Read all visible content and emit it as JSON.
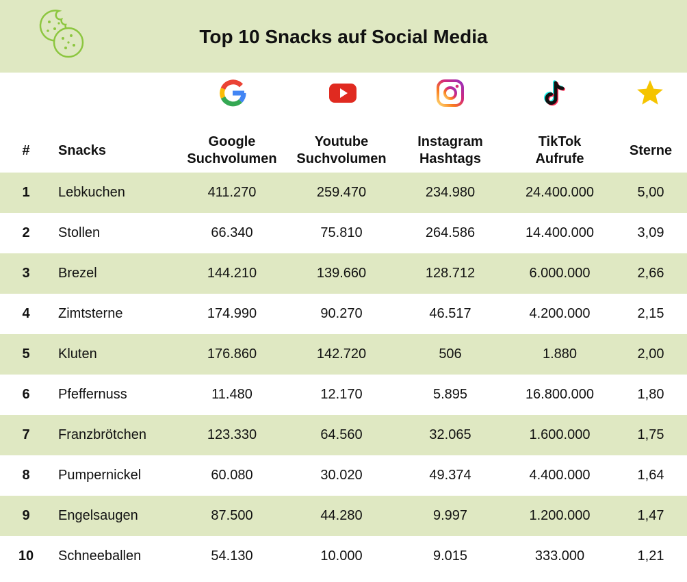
{
  "title": "Top 10 Snacks auf Social Media",
  "colors": {
    "band": "#dfe8c2",
    "logo_stroke": "#8cc63f",
    "youtube": "#e02a20",
    "star": "#f5c400"
  },
  "icons": [
    "cookie-logo",
    "google-icon",
    "youtube-icon",
    "instagram-icon",
    "tiktok-icon",
    "star-icon"
  ],
  "headers": {
    "rank": "#",
    "snack": "Snacks",
    "google": [
      "Google",
      "Suchvolumen"
    ],
    "youtube": [
      "Youtube",
      "Suchvolumen"
    ],
    "instagram": [
      "Instagram",
      "Hashtags"
    ],
    "tiktok": [
      "TikTok",
      "Aufrufe"
    ],
    "stars": "Sterne"
  },
  "chart_data": {
    "type": "table",
    "title": "Top 10 Snacks auf Social Media",
    "columns": [
      "#",
      "Snacks",
      "Google Suchvolumen",
      "Youtube Suchvolumen",
      "Instagram Hashtags",
      "TikTok Aufrufe",
      "Sterne"
    ],
    "rows": [
      [
        "1",
        "Lebkuchen",
        "411.270",
        "259.470",
        "234.980",
        "24.400.000",
        "5,00"
      ],
      [
        "2",
        "Stollen",
        "66.340",
        "75.810",
        "264.586",
        "14.400.000",
        "3,09"
      ],
      [
        "3",
        "Brezel",
        "144.210",
        "139.660",
        "128.712",
        "6.000.000",
        "2,66"
      ],
      [
        "4",
        "Zimtsterne",
        "174.990",
        "90.270",
        "46.517",
        "4.200.000",
        "2,15"
      ],
      [
        "5",
        "Kluten",
        "176.860",
        "142.720",
        "506",
        "1.880",
        "2,00"
      ],
      [
        "6",
        "Pfeffernuss",
        "11.480",
        "12.170",
        "5.895",
        "16.800.000",
        "1,80"
      ],
      [
        "7",
        "Franzbrötchen",
        "123.330",
        "64.560",
        "32.065",
        "1.600.000",
        "1,75"
      ],
      [
        "8",
        "Pumpernickel",
        "60.080",
        "30.020",
        "49.374",
        "4.400.000",
        "1,64"
      ],
      [
        "9",
        "Engelsaugen",
        "87.500",
        "44.280",
        "9.997",
        "1.200.000",
        "1,47"
      ],
      [
        "10",
        "Schneeballen",
        "54.130",
        "10.000",
        "9.015",
        "333.000",
        "1,21"
      ]
    ]
  }
}
